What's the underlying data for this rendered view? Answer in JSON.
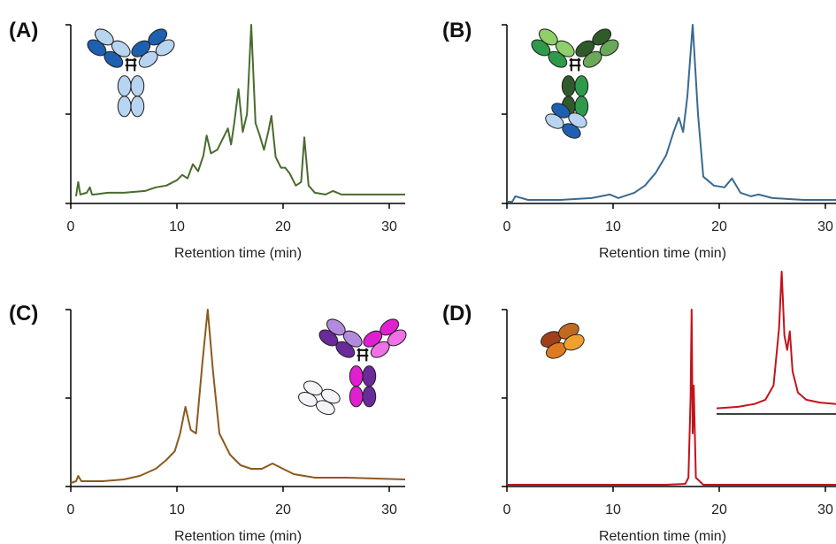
{
  "chart_data": [
    {
      "type": "line",
      "title": "(A)",
      "xlabel": "Retention time (min)",
      "xlim": [
        0,
        31.5
      ],
      "ylim": [
        0,
        1
      ],
      "xticks": [
        0,
        10,
        20,
        30
      ],
      "color": "#4a6b2e",
      "x": [
        0.5,
        0.7,
        0.9,
        1.5,
        1.8,
        2,
        2.2,
        3.5,
        5,
        7,
        8,
        9,
        10,
        10.5,
        11,
        11.5,
        12,
        12.5,
        12.8,
        13.2,
        13.8,
        14.3,
        14.8,
        15.1,
        15.4,
        15.8,
        16.2,
        16.6,
        17,
        17.4,
        17.8,
        18.2,
        18.6,
        18.9,
        19.3,
        19.8,
        20.2,
        20.6,
        21.2,
        21.7,
        22,
        22.4,
        23,
        24,
        24.7,
        25.5,
        28,
        31.5
      ],
      "values": [
        0.04,
        0.12,
        0.05,
        0.06,
        0.09,
        0.05,
        0.05,
        0.06,
        0.06,
        0.07,
        0.09,
        0.1,
        0.13,
        0.16,
        0.14,
        0.22,
        0.18,
        0.27,
        0.38,
        0.28,
        0.3,
        0.36,
        0.42,
        0.33,
        0.45,
        0.64,
        0.4,
        0.5,
        1.0,
        0.45,
        0.38,
        0.3,
        0.4,
        0.49,
        0.26,
        0.2,
        0.2,
        0.17,
        0.1,
        0.12,
        0.37,
        0.1,
        0.06,
        0.05,
        0.07,
        0.05,
        0.05,
        0.05
      ]
    },
    {
      "type": "line",
      "title": "(B)",
      "xlabel": "Retention time (min)",
      "xlim": [
        0,
        31
      ],
      "ylim": [
        0,
        1
      ],
      "xticks": [
        0,
        10,
        20,
        30
      ],
      "color": "#3a6a90",
      "x": [
        0,
        0.5,
        0.8,
        2,
        5,
        8,
        9.7,
        10.5,
        12,
        13,
        14,
        15,
        15.7,
        16.2,
        16.6,
        17,
        17.5,
        18,
        18.5,
        19.5,
        20.5,
        21.2,
        22,
        23,
        23.7,
        25,
        28,
        31
      ],
      "values": [
        0.01,
        0.01,
        0.04,
        0.02,
        0.02,
        0.03,
        0.05,
        0.03,
        0.06,
        0.1,
        0.17,
        0.27,
        0.4,
        0.48,
        0.4,
        0.6,
        1.0,
        0.5,
        0.15,
        0.1,
        0.09,
        0.14,
        0.06,
        0.04,
        0.05,
        0.03,
        0.02,
        0.02
      ]
    },
    {
      "type": "line",
      "title": "(C)",
      "xlabel": "Retention time (min)",
      "xlim": [
        0,
        31.5
      ],
      "ylim": [
        0,
        1
      ],
      "xticks": [
        0,
        10,
        20,
        30
      ],
      "color": "#8b5a1e",
      "x": [
        0,
        0.5,
        0.7,
        1,
        3,
        5,
        6.5,
        8,
        9,
        9.8,
        10.3,
        10.8,
        11.3,
        11.8,
        12.4,
        12.9,
        13.4,
        14,
        15,
        16,
        17,
        18,
        19,
        20,
        21,
        23,
        26,
        31.5
      ],
      "values": [
        0.02,
        0.03,
        0.06,
        0.03,
        0.03,
        0.04,
        0.06,
        0.1,
        0.15,
        0.2,
        0.3,
        0.45,
        0.32,
        0.3,
        0.7,
        1.0,
        0.65,
        0.3,
        0.18,
        0.12,
        0.1,
        0.1,
        0.13,
        0.1,
        0.07,
        0.05,
        0.05,
        0.04
      ]
    },
    {
      "type": "line",
      "title": "(D)",
      "xlabel": "Retention time (min)",
      "xlim": [
        0,
        31
      ],
      "ylim": [
        0,
        1
      ],
      "xticks": [
        0,
        10,
        20,
        30
      ],
      "color": "#c0141b",
      "x": [
        0,
        5,
        10,
        15,
        16.8,
        17.1,
        17.3,
        17.4,
        17.5,
        17.6,
        17.8,
        18.5,
        20,
        25,
        31
      ],
      "values": [
        0.01,
        0.01,
        0.01,
        0.01,
        0.015,
        0.05,
        0.5,
        1.0,
        0.3,
        0.57,
        0.05,
        0.01,
        0.01,
        0.01,
        0.01
      ]
    },
    {
      "type": "line",
      "xlim": [
        16.2,
        18.4
      ],
      "ylim": [
        0,
        1
      ],
      "color": "#c0141b",
      "x": [
        16.2,
        16.6,
        16.9,
        17.1,
        17.25,
        17.35,
        17.4,
        17.45,
        17.5,
        17.55,
        17.6,
        17.7,
        17.85,
        18.1,
        18.4
      ],
      "values": [
        0.04,
        0.05,
        0.07,
        0.1,
        0.2,
        0.6,
        1.0,
        0.55,
        0.45,
        0.58,
        0.3,
        0.15,
        0.1,
        0.08,
        0.07
      ]
    }
  ]
}
